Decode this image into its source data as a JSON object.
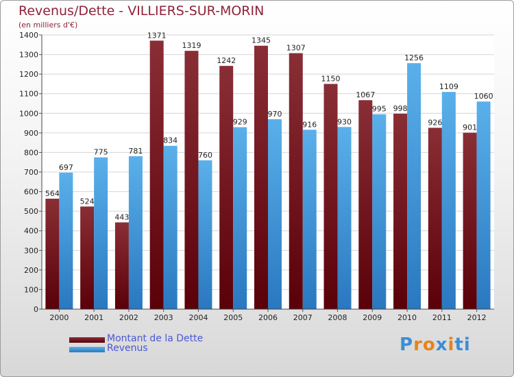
{
  "header": {
    "title": "Revenus/Dette - VILLIERS-SUR-MORIN",
    "subtitle": "(en milliers d'€)"
  },
  "legend": {
    "dette_label": "Montant de la Dette",
    "revenus_label": "Revenus"
  },
  "logo": {
    "text": "Proxiti",
    "letters": [
      "P",
      "r",
      "o",
      "x",
      "i",
      "t",
      "i"
    ],
    "colors": [
      "#3b8ed6",
      "#e8821c",
      "#e8821c",
      "#3b8ed6",
      "#e8821c",
      "#3b8ed6",
      "#3b8ed6"
    ]
  },
  "colors": {
    "dette_light": "#8a2e36",
    "dette_dark": "#5a0008",
    "revenus_light": "#5ab0ea",
    "revenus_dark": "#2a78c0",
    "title": "#8e2238",
    "legend_text": "#4a57d6"
  },
  "chart_data": {
    "type": "bar",
    "title": "Revenus/Dette - VILLIERS-SUR-MORIN",
    "ylabel": "(en milliers d'€)",
    "xlabel": "",
    "ylim": [
      0,
      1400
    ],
    "yticks": [
      0,
      100,
      200,
      300,
      400,
      500,
      600,
      700,
      800,
      900,
      1000,
      1100,
      1200,
      1300,
      1400
    ],
    "grid": true,
    "legend_position": "bottom-left",
    "categories": [
      "2000",
      "2001",
      "2002",
      "2003",
      "2004",
      "2005",
      "2006",
      "2007",
      "2008",
      "2009",
      "2010",
      "2011",
      "2012"
    ],
    "series": [
      {
        "name": "Montant de la Dette",
        "values": [
          564,
          524,
          443,
          1371,
          1319,
          1242,
          1345,
          1307,
          1150,
          1067,
          998,
          926,
          901
        ]
      },
      {
        "name": "Revenus",
        "values": [
          697,
          775,
          781,
          834,
          760,
          929,
          970,
          916,
          930,
          995,
          1256,
          1109,
          1060
        ]
      }
    ]
  }
}
